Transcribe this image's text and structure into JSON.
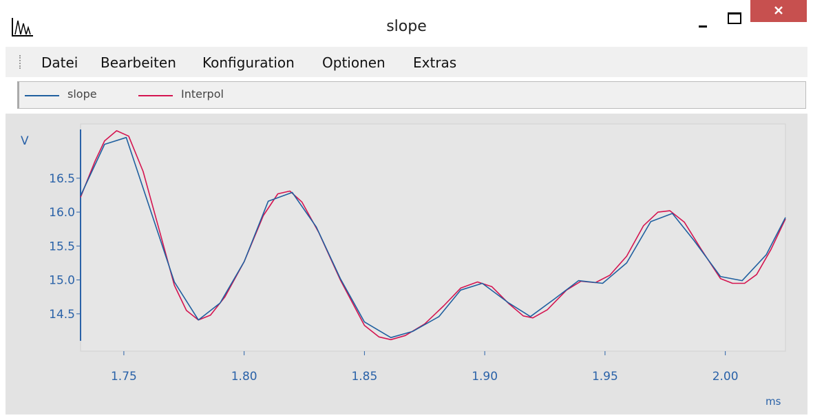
{
  "window": {
    "title": "slope",
    "menu": [
      "Datei",
      "Bearbeiten",
      "Konfiguration",
      "Optionen",
      "Extras"
    ]
  },
  "chart_data": {
    "type": "line",
    "y_label": "V",
    "x_label": "ms",
    "xlim": [
      1.732,
      2.025
    ],
    "ylim": [
      13.95,
      17.3
    ],
    "xticks": [
      1.75,
      {
        "value": 1.8,
        "label": "1.80"
      },
      1.85,
      {
        "value": 1.9,
        "label": "1.90"
      },
      1.95,
      {
        "value": 2.0,
        "label": "2.00"
      }
    ],
    "yticks": [
      14.5,
      {
        "value": 15.0,
        "label": "15.0"
      },
      15.5,
      {
        "value": 16.0,
        "label": "16.0"
      },
      16.5
    ],
    "series": [
      {
        "name": "slope",
        "color": "#1f5f9f",
        "x": [
          1.732,
          1.742,
          1.751,
          1.771,
          1.781,
          1.79,
          1.8,
          1.81,
          1.82,
          1.83,
          1.84,
          1.85,
          1.861,
          1.87,
          1.881,
          1.89,
          1.899,
          1.91,
          1.919,
          1.929,
          1.939,
          1.949,
          1.959,
          1.969,
          1.978,
          1.987,
          1.998,
          2.007,
          2.017,
          2.025
        ],
        "values": [
          16.24,
          17.0,
          17.1,
          14.97,
          14.41,
          14.66,
          15.27,
          16.16,
          16.29,
          15.78,
          15.02,
          14.38,
          14.15,
          14.24,
          14.46,
          14.85,
          14.95,
          14.66,
          14.46,
          14.72,
          14.99,
          14.95,
          15.25,
          15.86,
          15.98,
          15.58,
          15.05,
          14.99,
          15.37,
          15.92
        ]
      },
      {
        "name": "Interpol",
        "color": "#d4134f",
        "x": [
          1.732,
          1.738,
          1.742,
          1.747,
          1.752,
          1.758,
          1.765,
          1.771,
          1.776,
          1.781,
          1.786,
          1.792,
          1.8,
          1.808,
          1.814,
          1.819,
          1.824,
          1.831,
          1.84,
          1.85,
          1.856,
          1.861,
          1.867,
          1.875,
          1.883,
          1.89,
          1.897,
          1.903,
          1.91,
          1.916,
          1.92,
          1.926,
          1.934,
          1.94,
          1.946,
          1.952,
          1.959,
          1.966,
          1.972,
          1.977,
          1.983,
          1.99,
          1.998,
          2.003,
          2.008,
          2.013,
          2.019,
          2.025
        ],
        "values": [
          16.22,
          16.75,
          17.05,
          17.2,
          17.12,
          16.6,
          15.7,
          14.92,
          14.55,
          14.41,
          14.48,
          14.75,
          15.27,
          15.95,
          16.27,
          16.31,
          16.15,
          15.7,
          15.0,
          14.33,
          14.16,
          14.12,
          14.18,
          14.35,
          14.62,
          14.88,
          14.97,
          14.9,
          14.65,
          14.47,
          14.44,
          14.56,
          14.85,
          14.98,
          14.96,
          15.07,
          15.35,
          15.8,
          16.0,
          16.02,
          15.85,
          15.45,
          15.02,
          14.95,
          14.95,
          15.08,
          15.45,
          15.9
        ]
      }
    ]
  }
}
